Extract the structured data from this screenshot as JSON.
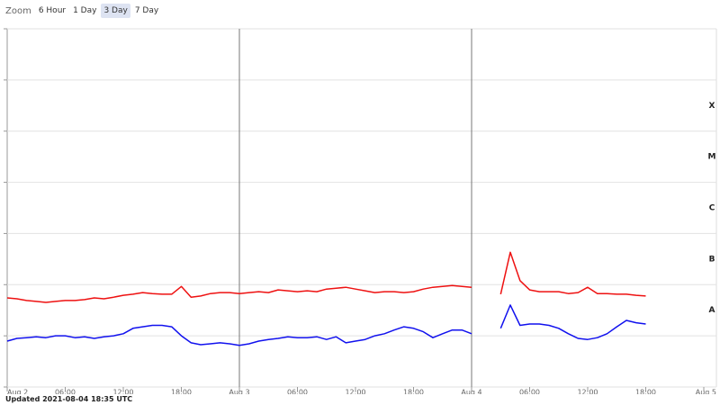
{
  "zoom": {
    "label": "Zoom",
    "buttons": [
      "6 Hour",
      "1 Day",
      "3 Day",
      "7 Day"
    ],
    "selected": 2
  },
  "footer": "Updated 2021-08-04 18:35 UTC",
  "chart_data": {
    "type": "line",
    "log_y": true,
    "grid": true,
    "x": [
      0,
      1,
      2,
      3,
      4,
      5,
      6,
      7,
      8,
      9,
      10,
      11,
      12,
      13,
      14,
      15,
      16,
      17,
      18,
      19,
      20,
      21,
      22,
      23,
      24,
      25,
      26,
      27,
      28,
      29,
      30,
      31,
      32,
      33,
      34,
      35,
      36,
      37,
      38,
      39,
      40,
      41,
      42,
      43,
      44,
      45,
      46,
      47,
      48,
      49,
      50,
      51,
      52,
      53,
      54,
      55,
      56,
      57,
      58,
      59,
      60,
      61,
      62,
      63,
      64,
      65,
      66
    ],
    "series": [
      {
        "color": "#ee1111",
        "values": [
          5.5e-08,
          5.3e-08,
          4.9e-08,
          4.7e-08,
          4.5e-08,
          4.7e-08,
          4.9e-08,
          4.9e-08,
          5.1e-08,
          5.5e-08,
          5.3e-08,
          5.7e-08,
          6.2e-08,
          6.5e-08,
          7e-08,
          6.7e-08,
          6.5e-08,
          6.5e-08,
          9.2e-08,
          5.7e-08,
          6e-08,
          6.7e-08,
          7e-08,
          7e-08,
          6.7e-08,
          7e-08,
          7.3e-08,
          7e-08,
          7.9e-08,
          7.6e-08,
          7.3e-08,
          7.6e-08,
          7.3e-08,
          8.2e-08,
          8.5e-08,
          8.9e-08,
          8.2e-08,
          7.6e-08,
          7e-08,
          7.3e-08,
          7.3e-08,
          7e-08,
          7.3e-08,
          8.2e-08,
          8.9e-08,
          9.2e-08,
          9.6e-08,
          9.2e-08,
          8.9e-08,
          null,
          null,
          6.5e-08,
          4.3e-07,
          1.2e-07,
          7.9e-08,
          7.3e-08,
          7.3e-08,
          7.3e-08,
          6.7e-08,
          7e-08,
          8.9e-08,
          6.7e-08,
          6.7e-08,
          6.5e-08,
          6.5e-08,
          6.2e-08,
          6e-08
        ]
      },
      {
        "color": "#1111ee",
        "values": [
          7.9e-09,
          8.9e-09,
          9.2e-09,
          9.6e-09,
          9.2e-09,
          1e-08,
          1e-08,
          9.2e-09,
          9.6e-09,
          8.9e-09,
          9.6e-09,
          1e-08,
          1.1e-08,
          1.4e-08,
          1.5e-08,
          1.6e-08,
          1.6e-08,
          1.5e-08,
          1e-08,
          7.3e-09,
          6.7e-09,
          7e-09,
          7.3e-09,
          7e-09,
          6.5e-09,
          7e-09,
          7.9e-09,
          8.5e-09,
          8.9e-09,
          9.6e-09,
          9.2e-09,
          9.2e-09,
          9.6e-09,
          8.5e-09,
          9.6e-09,
          7.3e-09,
          7.9e-09,
          8.5e-09,
          1e-08,
          1.1e-08,
          1.3e-08,
          1.5e-08,
          1.4e-08,
          1.2e-08,
          9.2e-09,
          1.1e-08,
          1.3e-08,
          1.3e-08,
          1.1e-08,
          null,
          null,
          1.4e-08,
          4e-08,
          1.6e-08,
          1.7e-08,
          1.7e-08,
          1.6e-08,
          1.4e-08,
          1.1e-08,
          8.9e-09,
          8.5e-09,
          9.2e-09,
          1.1e-08,
          1.5e-08,
          2e-08,
          1.8e-08,
          1.7e-08
        ]
      }
    ],
    "xlim": [
      0,
      72
    ],
    "xticks": [
      {
        "value": 0,
        "label": "Aug 2"
      },
      {
        "value": 6,
        "label": "06:00"
      },
      {
        "value": 12,
        "label": "12:00"
      },
      {
        "value": 18,
        "label": "18:00"
      },
      {
        "value": 24,
        "label": "Aug 3"
      },
      {
        "value": 30,
        "label": "06:00"
      },
      {
        "value": 36,
        "label": "12:00"
      },
      {
        "value": 42,
        "label": "18:00"
      },
      {
        "value": 48,
        "label": "Aug 4"
      },
      {
        "value": 54,
        "label": "06:00"
      },
      {
        "value": 60,
        "label": "12:00"
      },
      {
        "value": 66,
        "label": "18:00"
      },
      {
        "value": 72,
        "label": "Aug 5"
      }
    ],
    "ylim": [
      1e-09,
      0.01
    ],
    "yticks": [
      1e-09,
      1e-08,
      1e-07,
      1e-06,
      1e-05,
      0.0001,
      0.001,
      0.01
    ],
    "flare_classes": [
      {
        "value": 1e-08,
        "label": "A"
      },
      {
        "value": 1e-07,
        "label": "B"
      },
      {
        "value": 1e-06,
        "label": "C"
      },
      {
        "value": 1e-05,
        "label": "M"
      },
      {
        "value": 0.0001,
        "label": "X"
      }
    ]
  }
}
